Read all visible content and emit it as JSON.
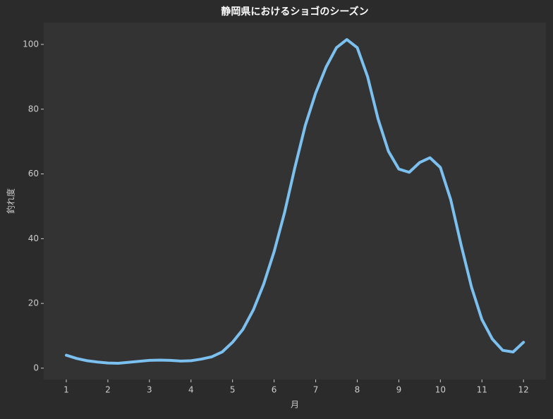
{
  "chart_data": {
    "type": "line",
    "title": "静岡県におけるショゴのシーズン",
    "x_label": "月",
    "y_label": "釣れ度",
    "x": [
      1,
      1.25,
      1.5,
      1.75,
      2,
      2.25,
      2.5,
      2.75,
      3,
      3.25,
      3.5,
      3.75,
      4,
      4.25,
      4.5,
      4.75,
      5,
      5.25,
      5.5,
      5.75,
      6,
      6.25,
      6.5,
      6.75,
      7,
      7.25,
      7.5,
      7.75,
      8,
      8.25,
      8.5,
      8.75,
      9,
      9.25,
      9.5,
      9.75,
      10,
      10.25,
      10.5,
      10.75,
      11,
      11.25,
      11.5,
      11.75,
      12
    ],
    "series": [
      {
        "color": "#7cc0f0",
        "values": [
          4,
          3,
          2.3,
          1.9,
          1.6,
          1.5,
          1.8,
          2.1,
          2.4,
          2.5,
          2.4,
          2.2,
          2.3,
          2.8,
          3.5,
          5,
          8,
          12,
          18,
          26,
          36,
          48,
          62,
          75,
          85,
          93,
          99,
          101.5,
          99,
          90,
          77,
          67,
          61.5,
          60.5,
          63.5,
          65,
          62,
          52,
          38,
          25,
          15,
          9,
          5.5,
          5,
          8
        ]
      }
    ],
    "xlim": [
      0.457,
      12.54
    ],
    "ylim": [
      -3.5,
      106.75
    ],
    "xticks": [
      1,
      2,
      3,
      4,
      5,
      6,
      7,
      8,
      9,
      10,
      11,
      12
    ],
    "yticks": [
      0,
      20,
      40,
      60,
      80,
      100
    ],
    "grid": false
  }
}
